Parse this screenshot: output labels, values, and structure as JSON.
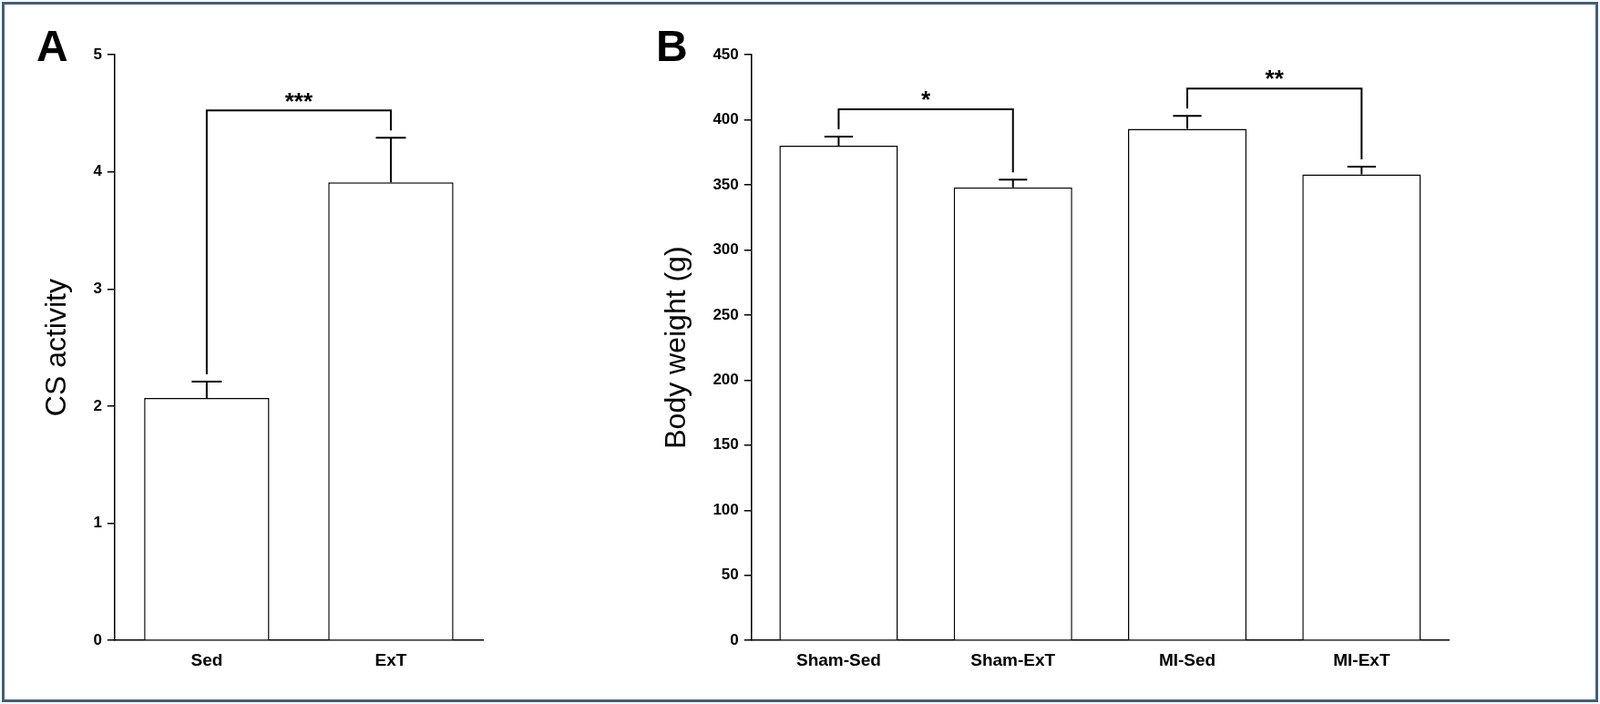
{
  "chart_data": [
    {
      "type": "bar",
      "title": "A",
      "y_label": "CS activity",
      "categories": [
        "Sed",
        "ExT"
      ],
      "values": [
        2.07,
        3.91
      ],
      "errors": [
        0.14,
        0.38
      ],
      "color": "#ffffff",
      "ylim": [
        0,
        5
      ],
      "yticks": [
        0,
        1,
        2,
        3,
        4,
        5
      ],
      "grid": false,
      "annotations": [
        {
          "from": "Sed",
          "to": "ExT",
          "text": "***"
        }
      ]
    },
    {
      "type": "bar",
      "title": "B",
      "y_label": "Body weight (g)",
      "categories": [
        "Sham-Sed",
        "Sham-ExT",
        "MI-Sed",
        "MI-ExT"
      ],
      "values": [
        380,
        348,
        393,
        358
      ],
      "errors": [
        7,
        6,
        10,
        6
      ],
      "color": "#ffffff",
      "ylim": [
        0,
        450
      ],
      "yticks": [
        0,
        50,
        100,
        150,
        200,
        250,
        300,
        350,
        400,
        450
      ],
      "grid": false,
      "annotations": [
        {
          "from": "Sham-Sed",
          "to": "Sham-ExT",
          "text": "*"
        },
        {
          "from": "MI-Sed",
          "to": "MI-ExT",
          "text": "**"
        }
      ]
    }
  ]
}
